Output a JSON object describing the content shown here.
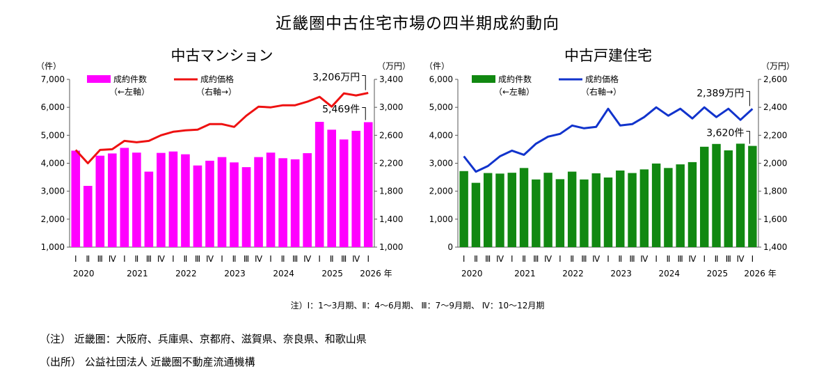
{
  "title": "近畿圏中古住宅市場の四半期成約動向",
  "colors": {
    "mansion_bar": "#ff00ff",
    "mansion_line": "#ee1111",
    "house_bar": "#118811",
    "house_line": "#1133cc"
  },
  "chart_data": [
    {
      "type": "bar+line",
      "title": "中古マンション",
      "left_unit": "（件）",
      "right_unit": "（万円）",
      "year_suffix": "年",
      "legend": [
        {
          "name": "成約件数",
          "note": "（←左軸）"
        },
        {
          "name": "成約価格",
          "note": "（右軸→）"
        }
      ],
      "quarters": [
        "Ⅰ",
        "Ⅱ",
        "Ⅲ",
        "Ⅳ",
        "Ⅰ",
        "Ⅱ",
        "Ⅲ",
        "Ⅳ",
        "Ⅰ",
        "Ⅱ",
        "Ⅲ",
        "Ⅳ",
        "Ⅰ",
        "Ⅱ",
        "Ⅲ",
        "Ⅳ",
        "Ⅰ",
        "Ⅱ",
        "Ⅲ",
        "Ⅳ",
        "Ⅰ",
        "Ⅱ",
        "Ⅲ",
        "Ⅳ",
        "Ⅰ"
      ],
      "years": [
        {
          "label": "2020",
          "start": 0
        },
        {
          "label": "2021",
          "start": 4
        },
        {
          "label": "2022",
          "start": 8
        },
        {
          "label": "2023",
          "start": 12
        },
        {
          "label": "2024",
          "start": 16
        },
        {
          "label": "2025",
          "start": 20
        },
        {
          "label": "2026",
          "start": 24
        }
      ],
      "series": [
        {
          "name": "成約件数",
          "axis": "left",
          "kind": "bar",
          "values": [
            4450,
            3190,
            4270,
            4350,
            4550,
            4380,
            3700,
            4370,
            4420,
            4320,
            3920,
            4090,
            4220,
            4030,
            3860,
            4220,
            4380,
            4180,
            4140,
            4360,
            5480,
            5200,
            4850,
            5160,
            5469
          ]
        },
        {
          "name": "成約価格",
          "axis": "right",
          "kind": "line",
          "values": [
            2390,
            2200,
            2390,
            2400,
            2520,
            2500,
            2520,
            2600,
            2650,
            2670,
            2680,
            2760,
            2760,
            2720,
            2880,
            3010,
            3000,
            3030,
            3030,
            3080,
            3150,
            3010,
            3200,
            3170,
            3206
          ]
        }
      ],
      "left_axis": {
        "min": 1000,
        "max": 7000,
        "ticks": [
          "1,000",
          "2,000",
          "3,000",
          "4,000",
          "5,000",
          "6,000",
          "7,000"
        ]
      },
      "right_axis": {
        "min": 1000,
        "max": 3400,
        "ticks": [
          "1,000",
          "1,400",
          "1,800",
          "2,200",
          "2,600",
          "3,000",
          "3,400"
        ]
      },
      "annotations": [
        {
          "text": "3,206万円",
          "series": 1
        },
        {
          "text": "5,469件",
          "series": 0
        }
      ]
    },
    {
      "type": "bar+line",
      "title": "中古戸建住宅",
      "left_unit": "（件）",
      "right_unit": "（万円）",
      "year_suffix": "年",
      "legend": [
        {
          "name": "成約件数",
          "note": "（←左軸）"
        },
        {
          "name": "成約価格",
          "note": "（右軸→）"
        }
      ],
      "quarters": [
        "Ⅰ",
        "Ⅱ",
        "Ⅲ",
        "Ⅳ",
        "Ⅰ",
        "Ⅱ",
        "Ⅲ",
        "Ⅳ",
        "Ⅰ",
        "Ⅱ",
        "Ⅲ",
        "Ⅳ",
        "Ⅰ",
        "Ⅱ",
        "Ⅲ",
        "Ⅳ",
        "Ⅰ",
        "Ⅱ",
        "Ⅲ",
        "Ⅳ",
        "Ⅰ",
        "Ⅱ",
        "Ⅲ",
        "Ⅳ",
        "Ⅰ"
      ],
      "years": [
        {
          "label": "2020",
          "start": 0
        },
        {
          "label": "2021",
          "start": 4
        },
        {
          "label": "2022",
          "start": 8
        },
        {
          "label": "2023",
          "start": 12
        },
        {
          "label": "2024",
          "start": 16
        },
        {
          "label": "2025",
          "start": 20
        },
        {
          "label": "2026",
          "start": 24
        }
      ],
      "series": [
        {
          "name": "成約件数",
          "axis": "left",
          "kind": "bar",
          "values": [
            2720,
            2300,
            2650,
            2630,
            2660,
            2830,
            2420,
            2660,
            2430,
            2700,
            2420,
            2640,
            2490,
            2740,
            2650,
            2780,
            2990,
            2830,
            2960,
            3040,
            3590,
            3690,
            3460,
            3700,
            3620
          ]
        },
        {
          "name": "成約価格",
          "axis": "right",
          "kind": "line",
          "values": [
            2050,
            1940,
            1980,
            2050,
            2090,
            2060,
            2140,
            2190,
            2210,
            2270,
            2250,
            2260,
            2390,
            2270,
            2280,
            2330,
            2400,
            2340,
            2390,
            2320,
            2400,
            2330,
            2390,
            2310,
            2389
          ]
        }
      ],
      "left_axis": {
        "min": 0,
        "max": 6000,
        "ticks": [
          "0",
          "1,000",
          "2,000",
          "3,000",
          "4,000",
          "5,000",
          "6,000"
        ]
      },
      "right_axis": {
        "min": 1400,
        "max": 2600,
        "ticks": [
          "1,400",
          "1,600",
          "1,800",
          "2,000",
          "2,200",
          "2,400",
          "2,600"
        ]
      },
      "annotations": [
        {
          "text": "2,389万円",
          "series": 1
        },
        {
          "text": "3,620件",
          "series": 0
        }
      ]
    }
  ],
  "period_note": "注）Ⅰ：1～3月期、Ⅱ：4～6月期、 Ⅲ：7～9月期、 Ⅳ：10～12月期",
  "notes": [
    "（注） 近畿圏：大阪府、兵庫県、京都府、滋賀県、奈良県、和歌山県",
    "（出所） 公益社団法人 近畿圏不動産流通機構"
  ]
}
